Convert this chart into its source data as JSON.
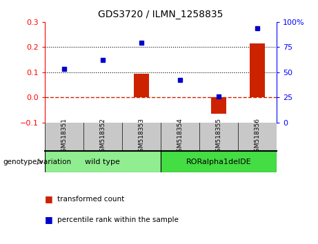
{
  "title": "GDS3720 / ILMN_1258835",
  "samples": [
    "GSM518351",
    "GSM518352",
    "GSM518353",
    "GSM518354",
    "GSM518355",
    "GSM518356"
  ],
  "transformed_count": [
    0.0,
    0.0,
    0.095,
    0.0,
    -0.065,
    0.215
  ],
  "percentile_rank_left": [
    0.113,
    0.148,
    0.218,
    0.068,
    0.003,
    0.275
  ],
  "ylim_left": [
    -0.1,
    0.3
  ],
  "ylim_right": [
    0,
    100
  ],
  "yticks_left": [
    -0.1,
    0.0,
    0.1,
    0.2,
    0.3
  ],
  "yticks_right": [
    0,
    25,
    50,
    75,
    100
  ],
  "hlines": [
    0.1,
    0.2
  ],
  "groups": [
    {
      "label": "wild type",
      "indices": [
        0,
        1,
        2
      ],
      "color": "#90EE90"
    },
    {
      "label": "RORalpha1delDE",
      "indices": [
        3,
        4,
        5
      ],
      "color": "#55DD55"
    }
  ],
  "group_label": "genotype/variation",
  "legend_red": "transformed count",
  "legend_blue": "percentile rank within the sample",
  "bar_color": "#CC2200",
  "dot_color": "#0000CC",
  "hline_color": "#000000",
  "zero_line_color": "#CC2200",
  "bg_color_sample": "#C8C8C8",
  "light_green": "#90EE90",
  "bright_green": "#44DD44"
}
